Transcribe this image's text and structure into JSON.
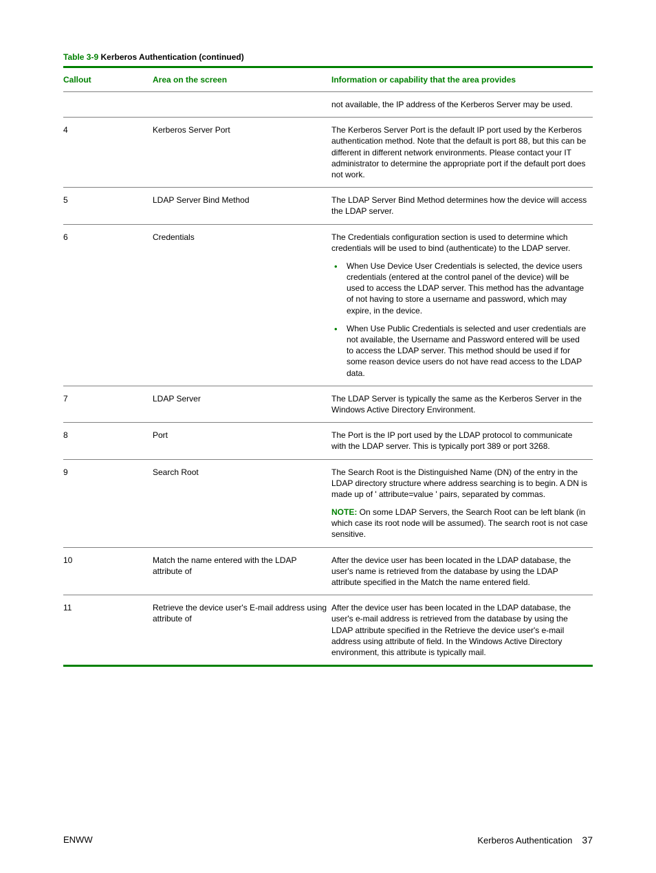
{
  "caption": {
    "label": "Table 3-9",
    "title": "Kerberos Authentication (continued)"
  },
  "headers": {
    "c1": "Callout",
    "c2": "Area on the screen",
    "c3": "Information or capability that the area provides"
  },
  "rows": [
    {
      "callout": "",
      "area": "",
      "info": [
        {
          "type": "p",
          "text": "not available, the IP address of the Kerberos Server may be used."
        }
      ]
    },
    {
      "callout": "4",
      "area": "Kerberos Server Port",
      "info": [
        {
          "type": "p",
          "text": "The Kerberos Server Port is the default IP port used by the Kerberos authentication method. Note that the default is port 88, but this can be different in different network environments. Please contact your IT administrator to determine the appropriate port if the default port does not work."
        }
      ]
    },
    {
      "callout": "5",
      "area": "LDAP Server Bind Method",
      "info": [
        {
          "type": "p",
          "text": "The LDAP Server Bind Method determines how the device will access the LDAP server."
        }
      ]
    },
    {
      "callout": "6",
      "area": "Credentials",
      "info": [
        {
          "type": "p",
          "text": "The Credentials configuration section is used to determine which credentials will be used to bind (authenticate) to the LDAP server."
        },
        {
          "type": "ul",
          "items": [
            "When Use Device User Credentials is selected, the device users credentials (entered at the control panel of the device) will be used to access the LDAP server. This method has the advantage of not having to store a username and password, which may expire, in the device.",
            "When Use Public Credentials is selected and user credentials are not available, the Username and Password entered will be used to access the LDAP server. This method should be used if for some reason device users do not have read access to the LDAP data."
          ]
        }
      ]
    },
    {
      "callout": "7",
      "area": "LDAP Server",
      "info": [
        {
          "type": "p",
          "text": "The LDAP Server is typically the same as the Kerberos Server in the Windows Active Directory Environment."
        }
      ]
    },
    {
      "callout": "8",
      "area": "Port",
      "info": [
        {
          "type": "p",
          "text": "The Port is the IP port used by the LDAP protocol to communicate with the LDAP server. This is typically port 389 or port 3268."
        }
      ]
    },
    {
      "callout": "9",
      "area": "Search Root",
      "info": [
        {
          "type": "p",
          "text": "The Search Root is the Distinguished Name (DN) of the entry in the LDAP directory structure where address searching is to begin. A DN is made up of ' attribute=value ' pairs, separated by commas."
        },
        {
          "type": "note",
          "label": "NOTE:",
          "text": "On some LDAP Servers, the Search Root can be left blank (in which case its root node will be assumed). The search root is not case sensitive."
        }
      ]
    },
    {
      "callout": "10",
      "area": "Match the name entered with the LDAP attribute of",
      "info": [
        {
          "type": "p",
          "text": "After the device user has been located in the LDAP database, the user's name is retrieved from the database by using the LDAP attribute specified in the Match the name entered field."
        }
      ]
    },
    {
      "callout": "11",
      "area": "Retrieve the device user's E-mail address using attribute of",
      "info": [
        {
          "type": "p",
          "text": "After the device user has been located in the LDAP database, the user's e-mail address is retrieved from the database by using the LDAP attribute specified in the Retrieve the device user's e-mail address using attribute of field. In the Windows Active Directory environment, this attribute is typically mail."
        }
      ]
    }
  ],
  "footer": {
    "left": "ENWW",
    "right_title": "Kerberos Authentication",
    "page": "37"
  }
}
